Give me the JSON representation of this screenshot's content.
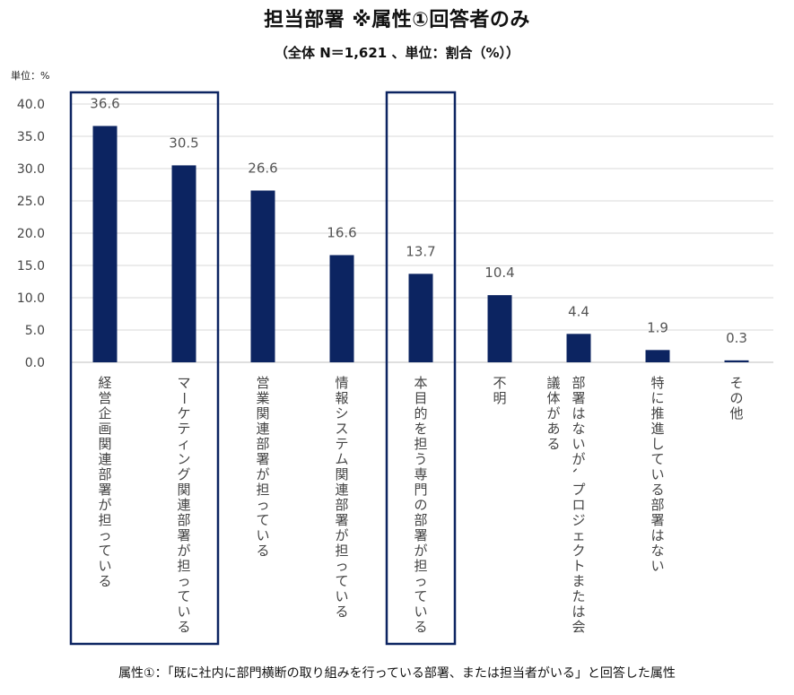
{
  "header": {
    "title": "担当部署 ※属性①回答者のみ",
    "subtitle": "（全体 N＝1,621 、単位：割合（%））",
    "unit": "単位：%"
  },
  "footnote": "属性①：「既に社内に部門横断の取り組みを行っている部署、または担当者がいる」と回答した属性",
  "colors": {
    "bar": "#0c2461",
    "highlight_border": "#0c2461",
    "grid": "#d9d9d9"
  },
  "chart_data": {
    "type": "bar",
    "title": "担当部署 ※属性①回答者のみ",
    "xlabel": "",
    "ylabel": "単位：%",
    "ylim": [
      0,
      40
    ],
    "yticks": [
      "0.0",
      "5.0",
      "10.0",
      "15.0",
      "20.0",
      "25.0",
      "30.0",
      "35.0",
      "40.0"
    ],
    "categories": [
      "経営企画関連部署が担っている",
      "マーケティング関連部署が担っている",
      "営業関連部署が担っている",
      "情報システム関連部署が担っている",
      "本目的を担う専門の部署が担っている",
      "不明",
      "部署はないが、プロジェクトまたは会議体がある",
      "特に推進している部署はない",
      "その他"
    ],
    "label_lines": [
      [
        "経営企画関連部署が担っている"
      ],
      [
        "マーケティング関連部署が担っている"
      ],
      [
        "営業関連部署が担っている"
      ],
      [
        "情報システム関連部署が担っている"
      ],
      [
        "本目的を担う専門の部署が担っている"
      ],
      [
        "不明"
      ],
      [
        "部署はないが、プロジェクトまたは会",
        "議体がある"
      ],
      [
        "特に推進している部署はない"
      ],
      [
        "その他"
      ]
    ],
    "values": [
      36.6,
      30.5,
      26.6,
      16.6,
      13.7,
      10.4,
      4.4,
      1.9,
      0.3
    ],
    "value_labels": [
      "36.6",
      "30.5",
      "26.6",
      "16.6",
      "13.7",
      "10.4",
      "4.4",
      "1.9",
      "0.3"
    ],
    "highlighted_groups": [
      [
        0,
        1
      ],
      [
        4,
        4
      ]
    ],
    "grid": true
  }
}
